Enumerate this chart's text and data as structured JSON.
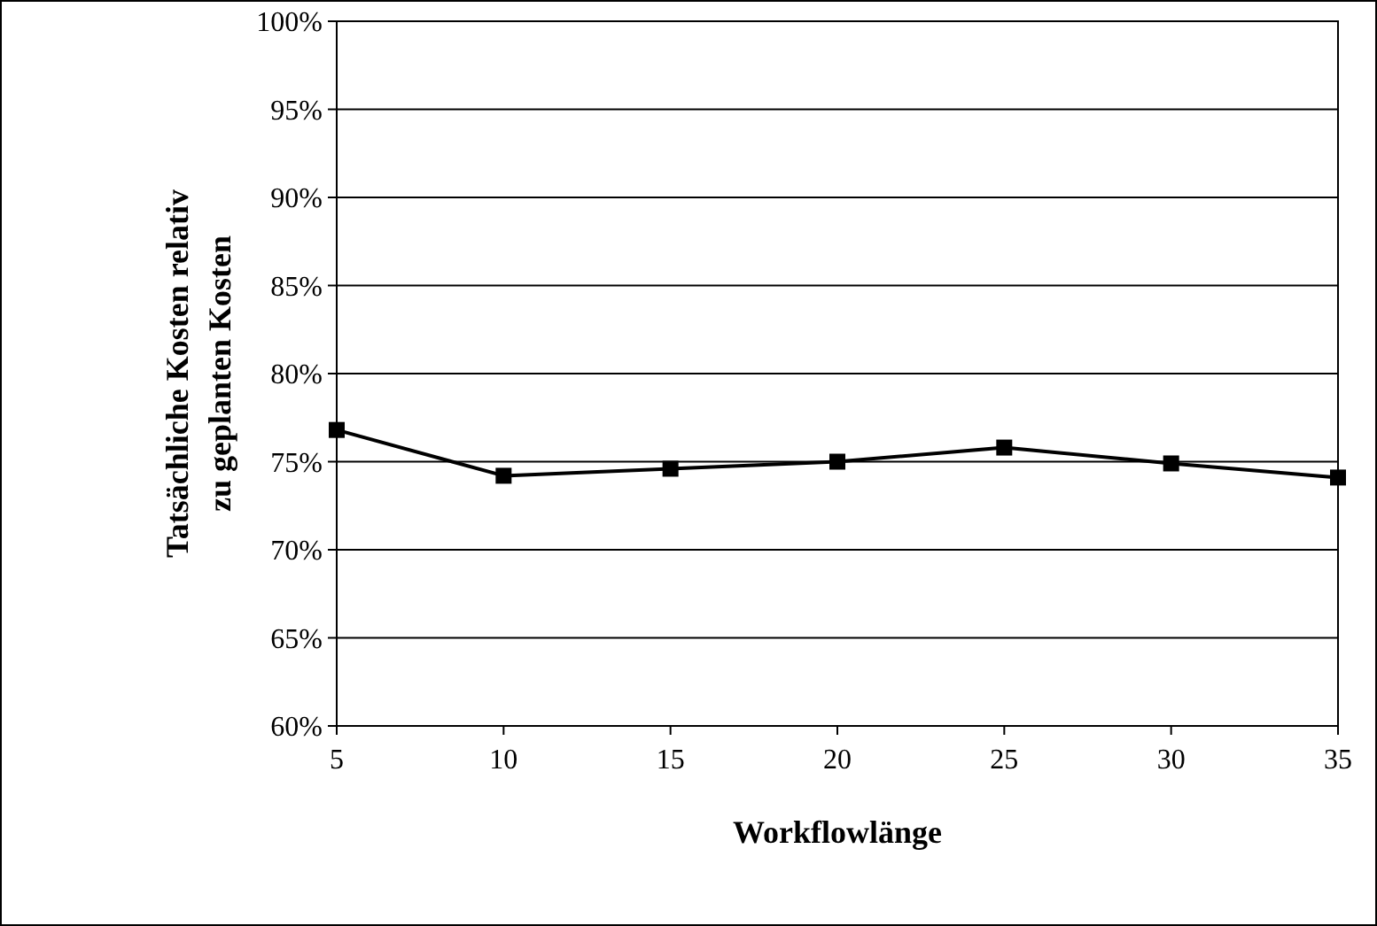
{
  "chart_data": {
    "type": "line",
    "xlabel": "Workflowlänge",
    "ylabel": "Tatsächliche Kosten relativ zu geplanten Kosten",
    "x": [
      5,
      10,
      15,
      20,
      25,
      30,
      35
    ],
    "series": [
      {
        "color": "#000000",
        "values": [
          76.8,
          74.2,
          74.6,
          75.0,
          75.8,
          74.9,
          74.1
        ]
      }
    ],
    "xlim": [
      5,
      35
    ],
    "xticks": [
      5,
      10,
      15,
      20,
      25,
      30,
      35
    ],
    "ylim": [
      60,
      100
    ],
    "yticks": [
      {
        "value": 60,
        "label": "60%"
      },
      {
        "value": 65,
        "label": "65%"
      },
      {
        "value": 70,
        "label": "70%"
      },
      {
        "value": 75,
        "label": "75%"
      },
      {
        "value": 80,
        "label": "80%"
      },
      {
        "value": 85,
        "label": "85%"
      },
      {
        "value": 90,
        "label": "90%"
      },
      {
        "value": 95,
        "label": "95%"
      },
      {
        "value": 100,
        "label": "100%"
      }
    ],
    "grid": "y",
    "marker": "square",
    "line_style": "solid"
  }
}
